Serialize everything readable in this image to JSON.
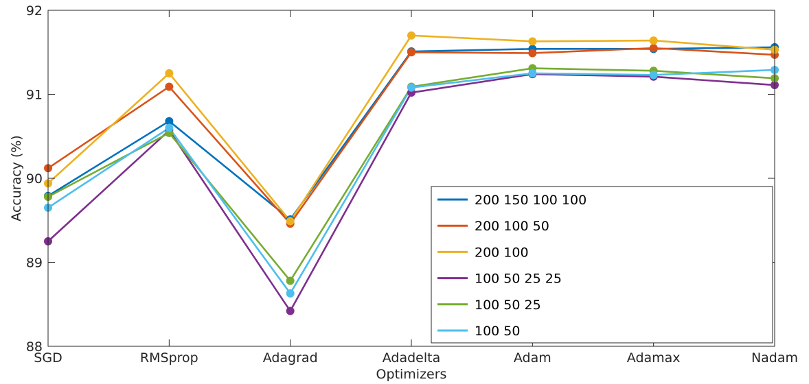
{
  "chart_data": {
    "type": "line",
    "categories": [
      "SGD",
      "RMSprop",
      "Adagrad",
      "Adadelta",
      "Adam",
      "Adamax",
      "Nadam"
    ],
    "xlabel": "Optimizers",
    "ylabel": "Accuracy (%)",
    "ylim": [
      88,
      92
    ],
    "yticks": [
      88,
      89,
      90,
      91,
      92
    ],
    "grid": false,
    "legend_position": "lower-right",
    "series": [
      {
        "name": "200 150 100 100",
        "color": "#0072BD",
        "values": [
          89.79,
          90.68,
          89.51,
          91.51,
          91.54,
          91.54,
          91.56
        ]
      },
      {
        "name": "200 100 50",
        "color": "#D95319",
        "values": [
          90.12,
          91.09,
          89.46,
          91.5,
          91.49,
          91.55,
          91.47
        ]
      },
      {
        "name": "200 100",
        "color": "#EDB120",
        "values": [
          89.94,
          91.25,
          89.49,
          91.7,
          91.63,
          91.64,
          91.53
        ]
      },
      {
        "name": "100 50 25 25",
        "color": "#7E2F8E",
        "values": [
          89.25,
          90.57,
          88.42,
          91.02,
          91.24,
          91.21,
          91.11
        ]
      },
      {
        "name": "100 50 25",
        "color": "#77AC30",
        "values": [
          89.78,
          90.54,
          88.78,
          91.09,
          91.31,
          91.28,
          91.19
        ]
      },
      {
        "name": "100 50",
        "color": "#4DBEEE",
        "values": [
          89.65,
          90.6,
          88.63,
          91.08,
          91.25,
          91.23,
          91.29
        ]
      }
    ]
  }
}
